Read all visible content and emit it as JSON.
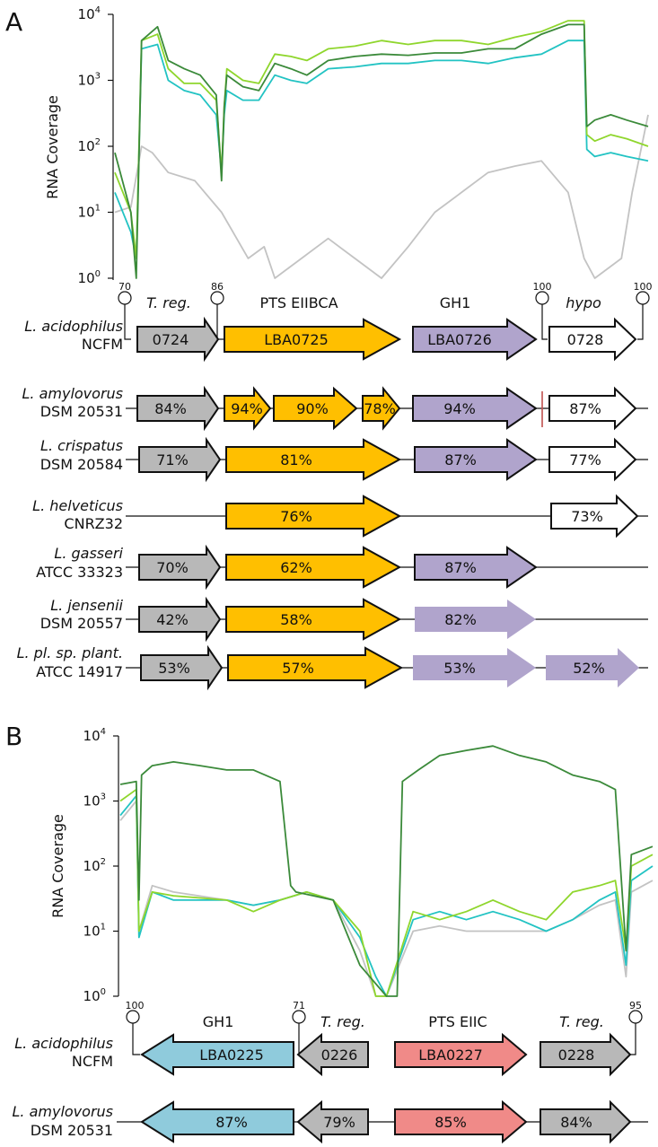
{
  "colors": {
    "dark_green": "#3b8a3a",
    "light_green": "#8fd62d",
    "cyan": "#22c3c3",
    "gray_line": "#c3c3c3",
    "gray_gene": "#b8b8b8",
    "orange": "#ffbf00",
    "purple": "#b0a4cc",
    "blue": "#8fcbdc",
    "red": "#f08a88",
    "white": "#ffffff",
    "terminator_mark": "#c0504d"
  },
  "panel_a": {
    "letter": "A",
    "chart_data": {
      "type": "line",
      "yscale": "log",
      "ylim": [
        1,
        10000
      ],
      "ylabel": "RNA Coverage",
      "yticks": [
        {
          "base": "10",
          "exp": "0"
        },
        {
          "base": "10",
          "exp": "1"
        },
        {
          "base": "10",
          "exp": "2"
        },
        {
          "base": "10",
          "exp": "3"
        },
        {
          "base": "10",
          "exp": "4"
        }
      ],
      "series": [
        {
          "name": "dark-green",
          "color": "#3b8a3a",
          "x": [
            0,
            0.03,
            0.04,
            0.05,
            0.08,
            0.1,
            0.13,
            0.16,
            0.19,
            0.2,
            0.205,
            0.21,
            0.24,
            0.27,
            0.3,
            0.33,
            0.36,
            0.4,
            0.45,
            0.5,
            0.55,
            0.6,
            0.65,
            0.7,
            0.75,
            0.8,
            0.85,
            0.88,
            0.885,
            0.9,
            0.93,
            0.96,
            1.0
          ],
          "y": [
            80,
            10,
            1,
            4000,
            6500,
            2000,
            1500,
            1200,
            600,
            30,
            400,
            1200,
            800,
            700,
            1800,
            1500,
            1200,
            2000,
            2300,
            2500,
            2400,
            2600,
            2600,
            3000,
            3000,
            5000,
            7000,
            7000,
            200,
            250,
            300,
            250,
            200
          ]
        },
        {
          "name": "light-green",
          "color": "#8fd62d",
          "x": [
            0,
            0.03,
            0.04,
            0.05,
            0.08,
            0.1,
            0.13,
            0.16,
            0.19,
            0.2,
            0.205,
            0.21,
            0.24,
            0.27,
            0.3,
            0.33,
            0.36,
            0.4,
            0.45,
            0.5,
            0.55,
            0.6,
            0.65,
            0.7,
            0.75,
            0.8,
            0.85,
            0.88,
            0.885,
            0.9,
            0.93,
            0.96,
            1.0
          ],
          "y": [
            40,
            10,
            2,
            4000,
            5000,
            1500,
            900,
            900,
            500,
            40,
            400,
            1500,
            1000,
            900,
            2500,
            2300,
            2000,
            3000,
            3300,
            4000,
            3500,
            4000,
            4000,
            3500,
            4500,
            5500,
            8000,
            8000,
            150,
            120,
            150,
            130,
            100
          ]
        },
        {
          "name": "cyan",
          "color": "#22c3c3",
          "x": [
            0,
            0.03,
            0.04,
            0.05,
            0.08,
            0.1,
            0.13,
            0.16,
            0.19,
            0.2,
            0.205,
            0.21,
            0.24,
            0.27,
            0.3,
            0.33,
            0.36,
            0.4,
            0.45,
            0.5,
            0.55,
            0.6,
            0.65,
            0.7,
            0.75,
            0.8,
            0.85,
            0.88,
            0.885,
            0.9,
            0.93,
            0.96,
            1.0
          ],
          "y": [
            20,
            5,
            2,
            3000,
            3500,
            1000,
            700,
            600,
            300,
            40,
            300,
            700,
            500,
            500,
            1200,
            1000,
            900,
            1500,
            1600,
            1800,
            1800,
            2000,
            2000,
            1800,
            2200,
            2500,
            4000,
            4000,
            90,
            70,
            80,
            70,
            60
          ]
        },
        {
          "name": "gray",
          "color": "#c3c3c3",
          "x": [
            0,
            0.03,
            0.05,
            0.07,
            0.1,
            0.15,
            0.2,
            0.25,
            0.28,
            0.3,
            0.35,
            0.4,
            0.45,
            0.5,
            0.55,
            0.6,
            0.65,
            0.7,
            0.75,
            0.8,
            0.85,
            0.88,
            0.9,
            0.95,
            0.97,
            1.0
          ],
          "y": [
            10,
            12,
            100,
            80,
            40,
            30,
            10,
            2,
            3,
            1,
            2,
            4,
            2,
            1,
            3,
            10,
            20,
            40,
            50,
            60,
            20,
            2,
            1,
            2,
            20,
            300
          ]
        }
      ]
    },
    "terminators": [
      "70",
      "86",
      "100",
      "100"
    ],
    "gene_headers": [
      "T. reg.",
      "PTS EIIBCA",
      "GH1",
      "hypo"
    ],
    "rows": [
      {
        "species": "L. acidophilus",
        "strain": "NCFM",
        "genes": [
          "0724",
          "LBA0725",
          "LBA0726",
          "0728"
        ]
      },
      {
        "species": "L. amylovorus",
        "strain": "DSM 20531",
        "genes": [
          "84%",
          "94%",
          "90%",
          "78%",
          "94%",
          "87%"
        ]
      },
      {
        "species": "L. crispatus",
        "strain": "DSM 20584",
        "genes": [
          "71%",
          "81%",
          "87%",
          "77%"
        ]
      },
      {
        "species": "L. helveticus",
        "strain": "CNRZ32",
        "genes": [
          "76%",
          "73%"
        ]
      },
      {
        "species": "L. gasseri",
        "strain": "ATCC 33323",
        "genes": [
          "70%",
          "62%",
          "87%"
        ]
      },
      {
        "species": "L. jensenii",
        "strain": "DSM 20557",
        "genes": [
          "42%",
          "58%",
          "82%"
        ]
      },
      {
        "species": "L. pl. sp. plant.",
        "strain": "ATCC 14917",
        "genes": [
          "53%",
          "57%",
          "53%",
          "52%"
        ]
      }
    ]
  },
  "panel_b": {
    "letter": "B",
    "chart_data": {
      "type": "line",
      "yscale": "log",
      "ylim": [
        1,
        10000
      ],
      "ylabel": "RNA Coverage",
      "yticks": [
        {
          "base": "10",
          "exp": "0"
        },
        {
          "base": "10",
          "exp": "1"
        },
        {
          "base": "10",
          "exp": "2"
        },
        {
          "base": "10",
          "exp": "3"
        },
        {
          "base": "10",
          "exp": "4"
        }
      ],
      "series": [
        {
          "name": "dark-green",
          "color": "#3b8a3a",
          "x": [
            0,
            0.03,
            0.035,
            0.04,
            0.06,
            0.1,
            0.15,
            0.2,
            0.25,
            0.3,
            0.32,
            0.33,
            0.4,
            0.45,
            0.5,
            0.52,
            0.53,
            0.56,
            0.6,
            0.65,
            0.7,
            0.75,
            0.8,
            0.85,
            0.9,
            0.93,
            0.95,
            0.96,
            1.0
          ],
          "y": [
            1800,
            2000,
            30,
            2500,
            3500,
            4000,
            3500,
            3000,
            3000,
            2000,
            50,
            40,
            30,
            3,
            1,
            1,
            2000,
            3000,
            5000,
            6000,
            7000,
            5000,
            4000,
            2500,
            2000,
            1500,
            5,
            150,
            200
          ]
        },
        {
          "name": "light-green",
          "color": "#8fd62d",
          "x": [
            0,
            0.03,
            0.035,
            0.06,
            0.1,
            0.2,
            0.25,
            0.3,
            0.35,
            0.4,
            0.45,
            0.48,
            0.5,
            0.55,
            0.6,
            0.65,
            0.7,
            0.75,
            0.8,
            0.85,
            0.9,
            0.93,
            0.95,
            0.96,
            1.0
          ],
          "y": [
            1000,
            1500,
            10,
            40,
            35,
            30,
            20,
            30,
            40,
            30,
            10,
            1,
            1,
            20,
            15,
            20,
            30,
            20,
            15,
            40,
            50,
            60,
            5,
            100,
            150
          ]
        },
        {
          "name": "cyan",
          "color": "#22c3c3",
          "x": [
            0,
            0.03,
            0.035,
            0.06,
            0.1,
            0.2,
            0.25,
            0.3,
            0.35,
            0.4,
            0.45,
            0.48,
            0.5,
            0.55,
            0.6,
            0.65,
            0.7,
            0.75,
            0.8,
            0.85,
            0.9,
            0.93,
            0.95,
            0.96,
            1.0
          ],
          "y": [
            600,
            1200,
            8,
            40,
            30,
            30,
            25,
            30,
            40,
            30,
            8,
            2,
            1,
            15,
            20,
            15,
            20,
            15,
            10,
            15,
            30,
            40,
            3,
            60,
            100
          ]
        },
        {
          "name": "gray",
          "color": "#c3c3c3",
          "x": [
            0,
            0.03,
            0.035,
            0.06,
            0.1,
            0.2,
            0.25,
            0.3,
            0.35,
            0.4,
            0.45,
            0.48,
            0.5,
            0.55,
            0.6,
            0.65,
            0.7,
            0.75,
            0.8,
            0.85,
            0.9,
            0.93,
            0.95,
            0.96,
            1.0
          ],
          "y": [
            500,
            1000,
            10,
            50,
            40,
            30,
            25,
            30,
            40,
            30,
            5,
            1,
            1,
            10,
            12,
            10,
            10,
            10,
            10,
            15,
            25,
            30,
            2,
            40,
            60
          ]
        }
      ]
    },
    "terminators": [
      "100",
      "71",
      "95"
    ],
    "gene_headers": [
      "GH1",
      "T. reg.",
      "PTS EIIC",
      "T. reg."
    ],
    "rows": [
      {
        "species": "L. acidophilus",
        "strain": "NCFM",
        "genes": [
          "LBA0225",
          "0226",
          "LBA0227",
          "0228"
        ]
      },
      {
        "species": "L. amylovorus",
        "strain": "DSM 20531",
        "genes": [
          "87%",
          "79%",
          "85%",
          "84%"
        ]
      }
    ]
  }
}
